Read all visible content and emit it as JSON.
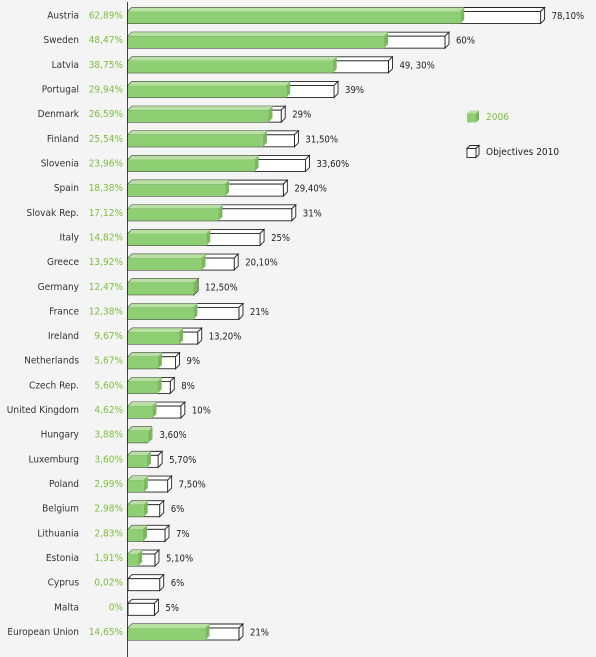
{
  "chart_data": {
    "type": "bar",
    "orientation": "horizontal",
    "categories": [
      "Austria",
      "Sweden",
      "Latvia",
      "Portugal",
      "Denmark",
      "Finland",
      "Slovenia",
      "Spain",
      "Slovak Rep.",
      "Italy",
      "Greece",
      "Germany",
      "France",
      "Ireland",
      "Netherlands",
      "Czech Rep.",
      "United Kingdom",
      "Hungary",
      "Luxemburg",
      "Poland",
      "Belgium",
      "Lithuania",
      "Estonia",
      "Cyprus",
      "Malta",
      "European Union"
    ],
    "series": [
      {
        "name": "2006",
        "color": "#8fcf73",
        "values": [
          62.89,
          48.47,
          38.75,
          29.94,
          26.59,
          25.54,
          23.96,
          18.38,
          17.12,
          14.82,
          13.92,
          12.47,
          12.38,
          9.67,
          5.67,
          5.6,
          4.62,
          3.88,
          3.6,
          2.99,
          2.98,
          2.83,
          1.91,
          0.02,
          0,
          14.65
        ],
        "labels": [
          "62,89%",
          "48,47%",
          "38,75%",
          "29,94%",
          "26,59%",
          "25,54%",
          "23,96%",
          "18,38%",
          "17,12%",
          "14,82%",
          "13,92%",
          "12,47%",
          "12,38%",
          "9,67%",
          "5,67%",
          "5,60%",
          "4,62%",
          "3,88%",
          "3,60%",
          "2,99%",
          "2,98%",
          "2,83%",
          "1,91%",
          "0,02%",
          "0%",
          "14,65%"
        ]
      },
      {
        "name": "Objectives 2010",
        "color": "#ffffff",
        "values": [
          78.1,
          60,
          49.3,
          39,
          29,
          31.5,
          33.6,
          29.4,
          31,
          25,
          20.1,
          12.5,
          21,
          13.2,
          9,
          8,
          10,
          3.6,
          5.7,
          7.5,
          6,
          7,
          5.1,
          6,
          5,
          21
        ],
        "labels": [
          "78,10%",
          "60%",
          "49, 30%",
          "39%",
          "29%",
          "31,50%",
          "33,60%",
          "29,40%",
          "31%",
          "25%",
          "20,10%",
          "12,50%",
          "21%",
          "13,20%",
          "9%",
          "8%",
          "10%",
          "3,60%",
          "5,70%",
          "7,50%",
          "6%",
          "7%",
          "5,10%",
          "6%",
          "5%",
          "21%"
        ]
      }
    ],
    "xlim": [
      0,
      78.1
    ],
    "grid": false,
    "legend": {
      "position": "right",
      "items": [
        {
          "label": "2006",
          "color": "#8fcf73",
          "label_color": "#7cbf3e"
        },
        {
          "label": "Objectives 2010",
          "color": "#ffffff",
          "label_color": "#222222"
        }
      ]
    }
  }
}
